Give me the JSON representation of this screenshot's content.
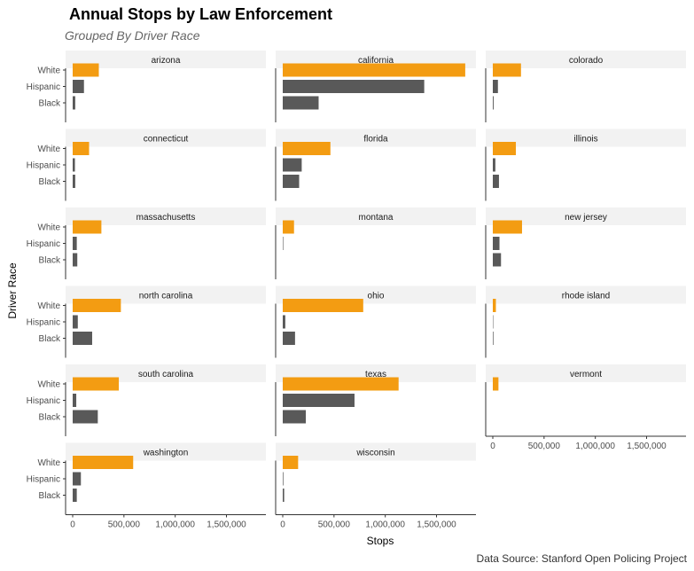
{
  "chart_data": {
    "type": "bar",
    "orientation": "horizontal",
    "title": "Annual Stops by Law Enforcement",
    "subtitle": "Grouped By Driver Race",
    "xlabel": "Stops",
    "ylabel": "Driver Race",
    "caption": "Data Source: Stanford Open Policing Project",
    "categories": [
      "White",
      "Hispanic",
      "Black"
    ],
    "xlim": [
      0,
      1850000
    ],
    "xticks": [
      0,
      500000,
      1000000,
      1500000
    ],
    "xtick_labels": [
      "0",
      "500,000",
      "1,000,000",
      "1,500,000"
    ],
    "colors": {
      "White": "#F39C12",
      "Hispanic": "#595959",
      "Black": "#595959",
      "strip": "#F2F2F2"
    },
    "grid": false,
    "legend": "none",
    "facets": [
      {
        "name": "arizona",
        "values": [
          255000,
          110000,
          25000
        ]
      },
      {
        "name": "california",
        "values": [
          1780000,
          1380000,
          350000
        ]
      },
      {
        "name": "colorado",
        "values": [
          275000,
          50000,
          8000
        ]
      },
      {
        "name": "connecticut",
        "values": [
          160000,
          22000,
          25000
        ]
      },
      {
        "name": "florida",
        "values": [
          465000,
          185000,
          160000
        ]
      },
      {
        "name": "illinois",
        "values": [
          225000,
          25000,
          60000
        ]
      },
      {
        "name": "massachusetts",
        "values": [
          280000,
          40000,
          45000
        ]
      },
      {
        "name": "montana",
        "values": [
          110000,
          5000,
          0
        ]
      },
      {
        "name": "new jersey",
        "values": [
          285000,
          65000,
          80000
        ]
      },
      {
        "name": "north carolina",
        "values": [
          470000,
          50000,
          190000
        ]
      },
      {
        "name": "ohio",
        "values": [
          785000,
          25000,
          120000
        ]
      },
      {
        "name": "rhode island",
        "values": [
          30000,
          4000,
          6000
        ]
      },
      {
        "name": "south carolina",
        "values": [
          450000,
          35000,
          245000
        ]
      },
      {
        "name": "texas",
        "values": [
          1130000,
          700000,
          225000
        ]
      },
      {
        "name": "vermont",
        "values": [
          55000,
          0,
          0
        ]
      },
      {
        "name": "washington",
        "values": [
          590000,
          80000,
          40000
        ]
      },
      {
        "name": "wisconsin",
        "values": [
          150000,
          6000,
          14000
        ]
      }
    ]
  }
}
